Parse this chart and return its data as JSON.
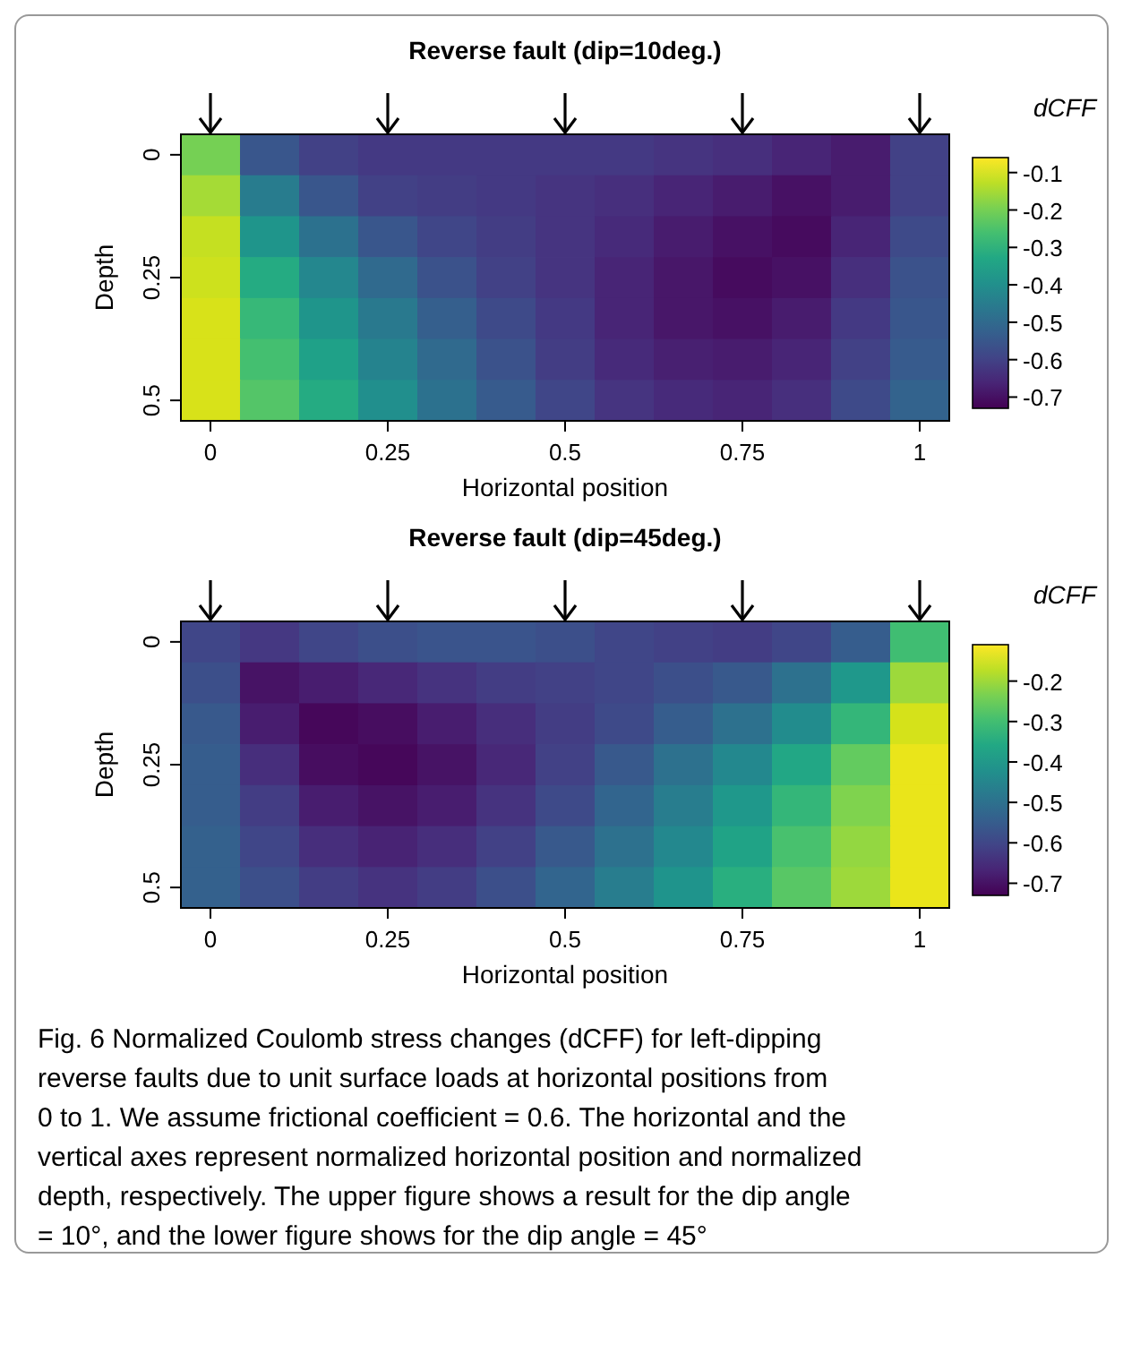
{
  "chart_data": [
    {
      "type": "heatmap",
      "title": "Reverse fault (dip=10deg.)",
      "xlabel": "Horizontal position",
      "ylabel": "Depth",
      "clabel": "dCFF",
      "categories": [
        "0",
        null,
        null,
        "0.25",
        null,
        null,
        "0.5",
        null,
        null,
        "0.75",
        null,
        null,
        "1"
      ],
      "y_categories": [
        "0",
        null,
        null,
        "0.25",
        null,
        null,
        "0.5"
      ],
      "clim": [
        -0.73,
        -0.06
      ],
      "cticks": [
        -0.1,
        -0.2,
        -0.3,
        -0.4,
        -0.5,
        -0.6,
        -0.7
      ],
      "cells": [
        [
          -0.2,
          -0.55,
          -0.6,
          -0.62,
          -0.62,
          -0.62,
          -0.62,
          -0.62,
          -0.63,
          -0.64,
          -0.66,
          -0.68,
          -0.6
        ],
        [
          -0.15,
          -0.45,
          -0.55,
          -0.6,
          -0.61,
          -0.62,
          -0.63,
          -0.64,
          -0.66,
          -0.68,
          -0.7,
          -0.68,
          -0.6
        ],
        [
          -0.12,
          -0.38,
          -0.48,
          -0.55,
          -0.59,
          -0.61,
          -0.63,
          -0.65,
          -0.68,
          -0.7,
          -0.71,
          -0.66,
          -0.58
        ],
        [
          -0.11,
          -0.32,
          -0.42,
          -0.5,
          -0.56,
          -0.6,
          -0.63,
          -0.66,
          -0.69,
          -0.71,
          -0.7,
          -0.64,
          -0.56
        ],
        [
          -0.1,
          -0.28,
          -0.38,
          -0.46,
          -0.53,
          -0.58,
          -0.62,
          -0.66,
          -0.69,
          -0.7,
          -0.68,
          -0.62,
          -0.55
        ],
        [
          -0.1,
          -0.26,
          -0.35,
          -0.43,
          -0.5,
          -0.56,
          -0.61,
          -0.65,
          -0.67,
          -0.68,
          -0.66,
          -0.6,
          -0.54
        ],
        [
          -0.1,
          -0.24,
          -0.32,
          -0.4,
          -0.48,
          -0.54,
          -0.59,
          -0.63,
          -0.65,
          -0.66,
          -0.64,
          -0.58,
          -0.52
        ]
      ]
    },
    {
      "type": "heatmap",
      "title": "Reverse fault (dip=45deg.)",
      "xlabel": "Horizontal position",
      "ylabel": "Depth",
      "clabel": "dCFF",
      "categories": [
        "0",
        null,
        null,
        "0.25",
        null,
        null,
        "0.5",
        null,
        null,
        "0.75",
        null,
        null,
        "1"
      ],
      "y_categories": [
        "0",
        null,
        null,
        "0.25",
        null,
        null,
        "0.5"
      ],
      "clim": [
        -0.73,
        -0.11
      ],
      "cticks": [
        -0.2,
        -0.3,
        -0.4,
        -0.5,
        -0.6,
        -0.7
      ],
      "cells": [
        [
          -0.6,
          -0.63,
          -0.6,
          -0.58,
          -0.57,
          -0.57,
          -0.58,
          -0.6,
          -0.61,
          -0.62,
          -0.6,
          -0.55,
          -0.3
        ],
        [
          -0.58,
          -0.7,
          -0.68,
          -0.66,
          -0.64,
          -0.62,
          -0.61,
          -0.6,
          -0.58,
          -0.56,
          -0.5,
          -0.4,
          -0.2
        ],
        [
          -0.56,
          -0.68,
          -0.72,
          -0.71,
          -0.68,
          -0.65,
          -0.62,
          -0.59,
          -0.55,
          -0.5,
          -0.43,
          -0.32,
          -0.15
        ],
        [
          -0.55,
          -0.65,
          -0.71,
          -0.72,
          -0.7,
          -0.66,
          -0.61,
          -0.56,
          -0.5,
          -0.44,
          -0.36,
          -0.26,
          -0.13
        ],
        [
          -0.55,
          -0.62,
          -0.68,
          -0.7,
          -0.68,
          -0.64,
          -0.59,
          -0.53,
          -0.47,
          -0.4,
          -0.32,
          -0.23,
          -0.13
        ],
        [
          -0.54,
          -0.6,
          -0.65,
          -0.67,
          -0.65,
          -0.61,
          -0.56,
          -0.5,
          -0.44,
          -0.37,
          -0.29,
          -0.21,
          -0.13
        ],
        [
          -0.54,
          -0.58,
          -0.62,
          -0.64,
          -0.62,
          -0.58,
          -0.53,
          -0.47,
          -0.41,
          -0.34,
          -0.27,
          -0.2,
          -0.13
        ]
      ],
      "annotations": [
        "Fig. 6 Normalized Coulomb stress changes (dCFF) for left-dipping reverse faults due to unit surface loads at horizontal positions from 0 to 1. We assume frictional coefficient = 0.6. The horizontal and the vertical axes represent normalized horizontal position and normalized depth, respectively. The upper figure shows a result for the dip angle = 10°, and the lower figure shows for the dip angle = 45°"
      ]
    }
  ]
}
